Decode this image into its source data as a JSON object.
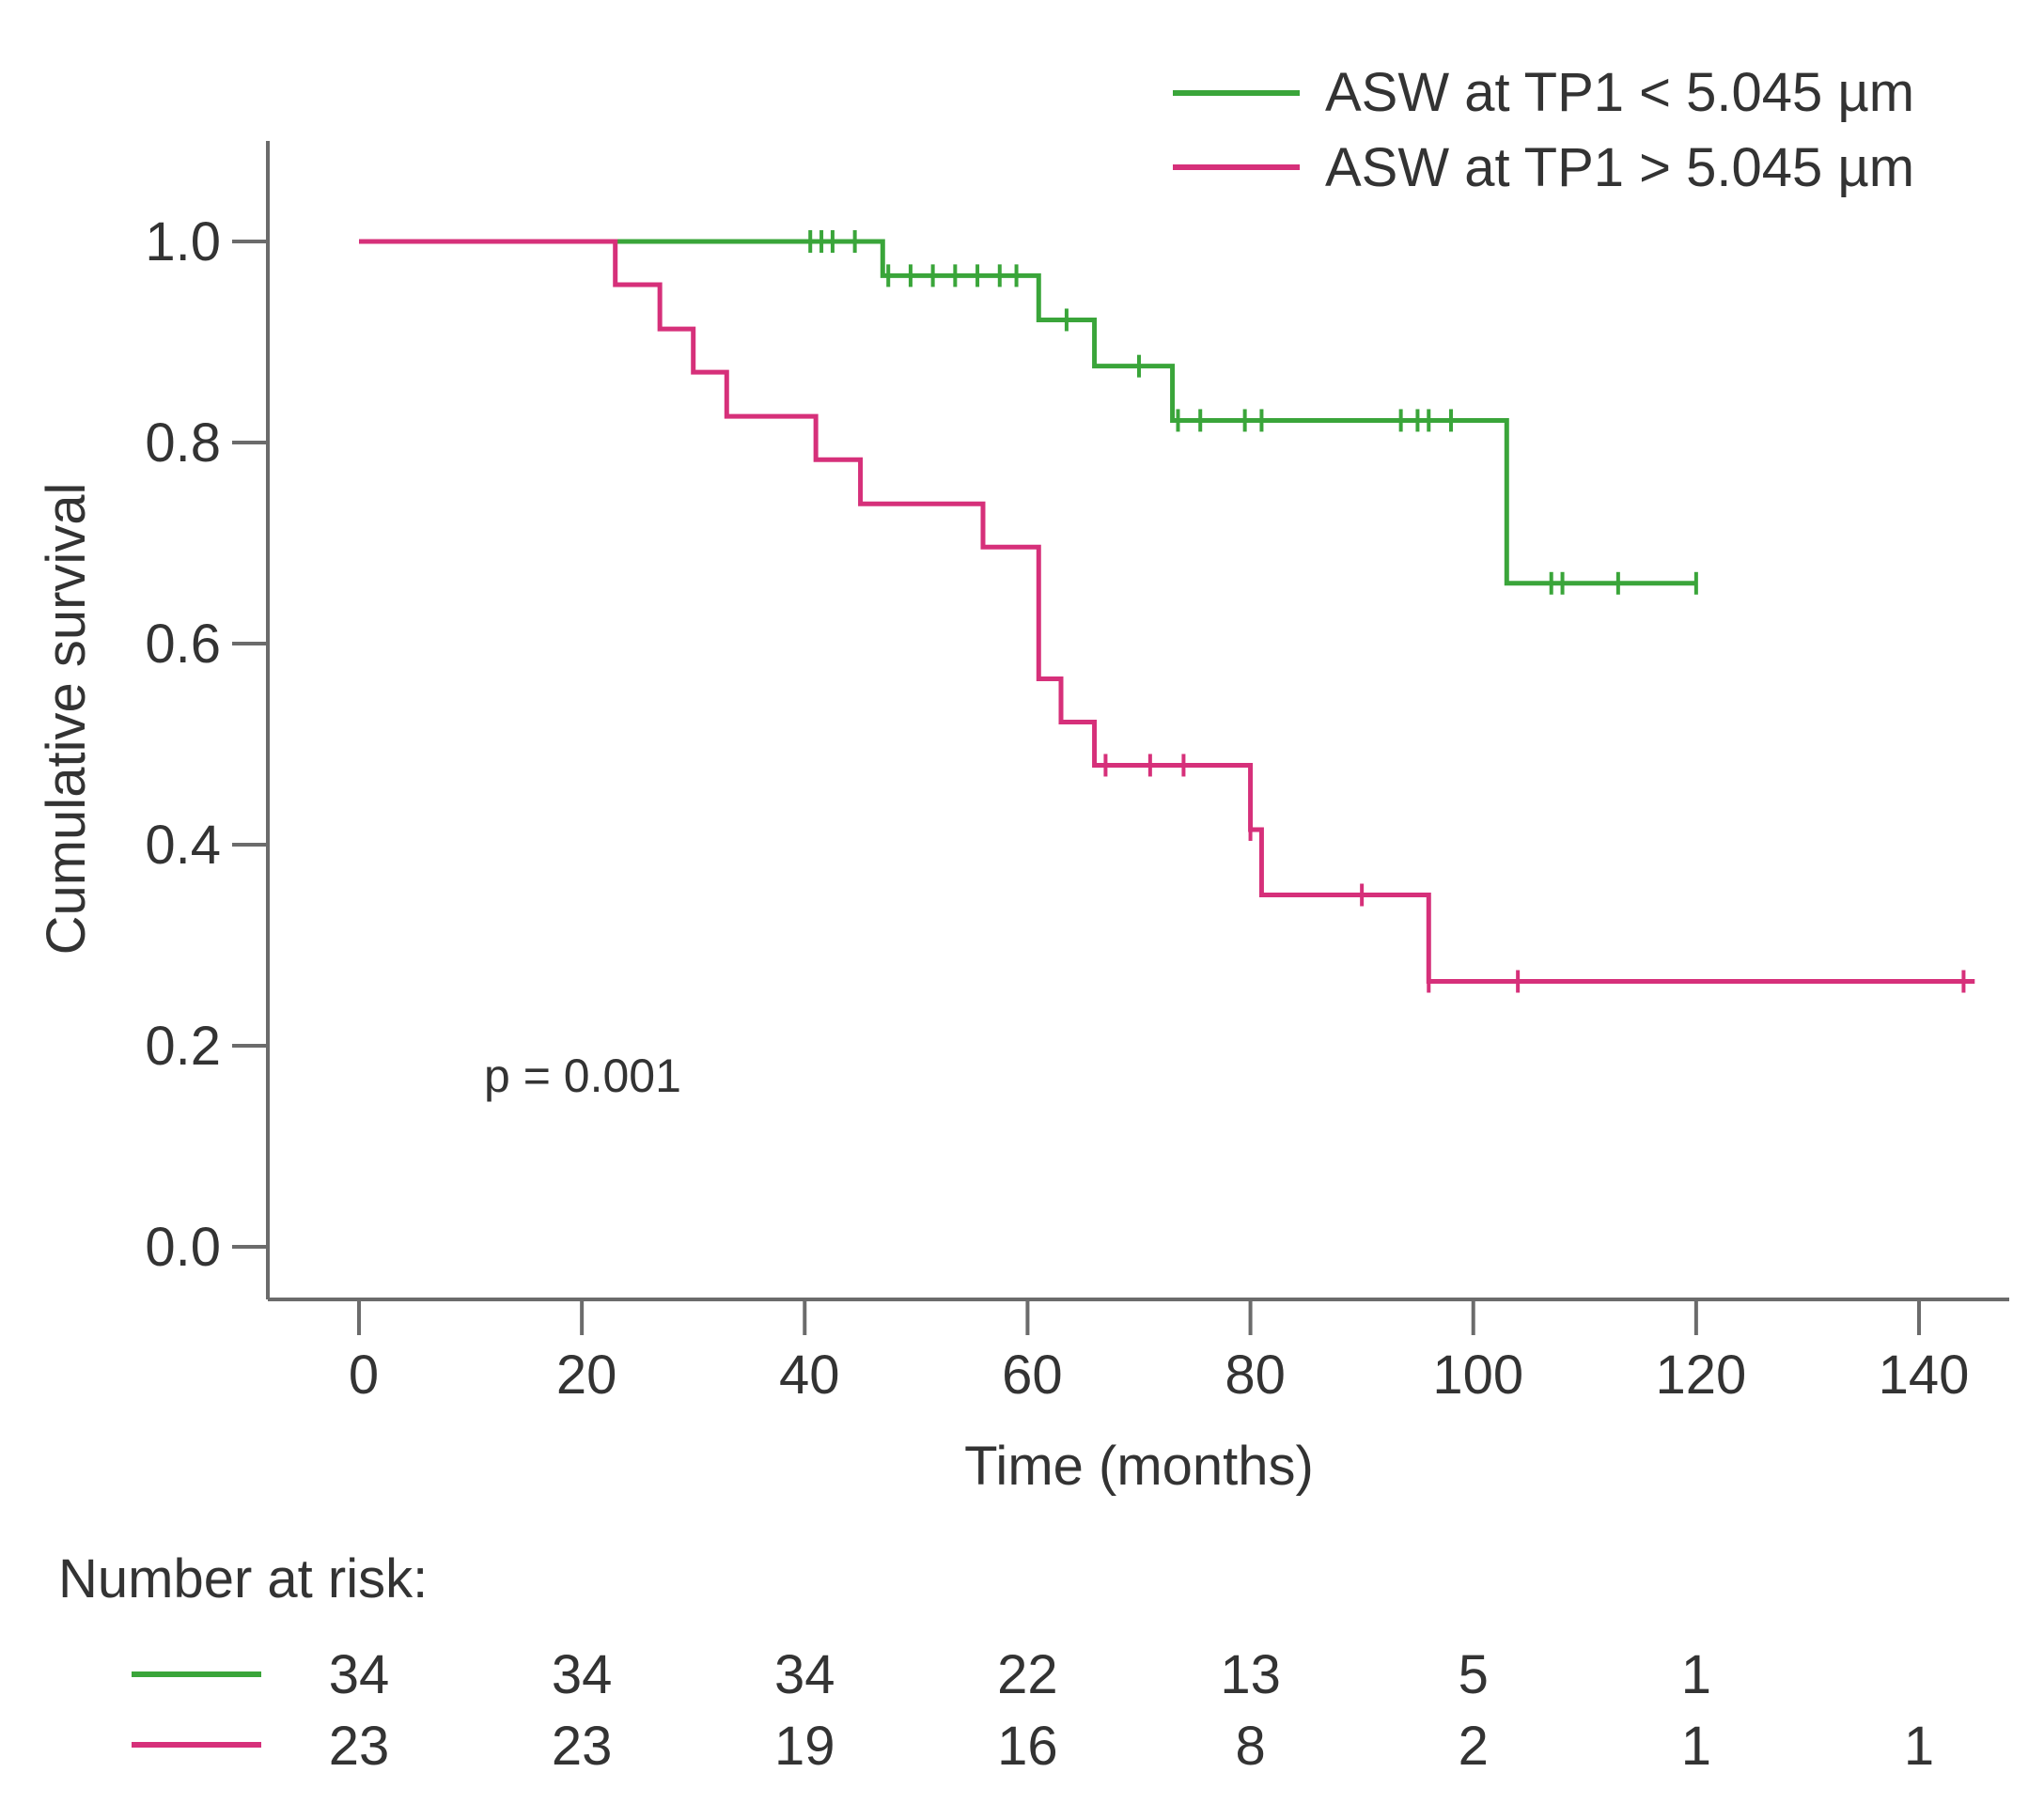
{
  "chart_data": {
    "type": "line",
    "subtype": "kaplan-meier",
    "xlabel": "Time (months)",
    "ylabel": "Cumulative survival",
    "xlim": [
      -8,
      148
    ],
    "ylim": [
      -0.06,
      1.1
    ],
    "x_ticks": [
      0,
      20,
      40,
      60,
      80,
      100,
      120,
      140
    ],
    "y_ticks": [
      0.0,
      0.2,
      0.4,
      0.6,
      0.8,
      1.0
    ],
    "x_tick_labels": [
      "0",
      "20",
      "40",
      "60",
      "80",
      "100",
      "120",
      "140"
    ],
    "y_tick_labels": [
      "0.0",
      "0.2",
      "0.4",
      "0.6",
      "0.8",
      "1.0"
    ],
    "legend_position": "top-right",
    "annotation": "p = 0.001",
    "series": [
      {
        "name": "ASW at TP1 < 5.045 µm",
        "color": "#3aa53a",
        "steps": [
          [
            0,
            1.0
          ],
          [
            47,
            0.966
          ],
          [
            61,
            0.922
          ],
          [
            66,
            0.876
          ],
          [
            73,
            0.822
          ],
          [
            103,
            0.66
          ],
          [
            120,
            0.66
          ]
        ],
        "censored": [
          [
            40.5,
            1.0
          ],
          [
            41.5,
            1.0
          ],
          [
            42.5,
            1.0
          ],
          [
            44.5,
            1.0
          ],
          [
            47.5,
            0.966
          ],
          [
            49.5,
            0.966
          ],
          [
            51.5,
            0.966
          ],
          [
            53.5,
            0.966
          ],
          [
            55.5,
            0.966
          ],
          [
            57.5,
            0.966
          ],
          [
            59,
            0.966
          ],
          [
            63.5,
            0.922
          ],
          [
            70,
            0.876
          ],
          [
            73.5,
            0.822
          ],
          [
            75.5,
            0.822
          ],
          [
            79.5,
            0.822
          ],
          [
            81,
            0.822
          ],
          [
            93.5,
            0.822
          ],
          [
            95,
            0.822
          ],
          [
            96,
            0.822
          ],
          [
            98,
            0.822
          ],
          [
            107,
            0.66
          ],
          [
            108,
            0.66
          ],
          [
            113,
            0.66
          ],
          [
            120,
            0.66
          ]
        ]
      },
      {
        "name": "ASW at TP1 > 5.045 µm",
        "color": "#d6307a",
        "steps": [
          [
            0,
            1.0
          ],
          [
            23,
            0.957
          ],
          [
            27,
            0.913
          ],
          [
            30,
            0.87
          ],
          [
            33,
            0.826
          ],
          [
            41,
            0.783
          ],
          [
            45,
            0.739
          ],
          [
            56,
            0.696
          ],
          [
            61,
            0.565
          ],
          [
            63,
            0.522
          ],
          [
            66,
            0.479
          ],
          [
            80,
            0.415
          ],
          [
            81,
            0.35
          ],
          [
            96,
            0.264
          ],
          [
            145,
            0.264
          ]
        ],
        "censored": [
          [
            67,
            0.479
          ],
          [
            71,
            0.479
          ],
          [
            74,
            0.479
          ],
          [
            80,
            0.415
          ],
          [
            90,
            0.35
          ],
          [
            96,
            0.264
          ],
          [
            104,
            0.264
          ],
          [
            144,
            0.264
          ]
        ]
      }
    ],
    "number_at_risk": {
      "title": "Number at risk:",
      "times": [
        0,
        20,
        40,
        60,
        80,
        100,
        120,
        140
      ],
      "rows": [
        {
          "series": "ASW at TP1 < 5.045 µm",
          "color": "#3aa53a",
          "values": [
            "34",
            "34",
            "34",
            "22",
            "13",
            "5",
            "1",
            ""
          ]
        },
        {
          "series": "ASW at TP1 > 5.045 µm",
          "color": "#d6307a",
          "values": [
            "23",
            "23",
            "19",
            "16",
            "8",
            "2",
            "1",
            "1"
          ]
        }
      ]
    }
  }
}
